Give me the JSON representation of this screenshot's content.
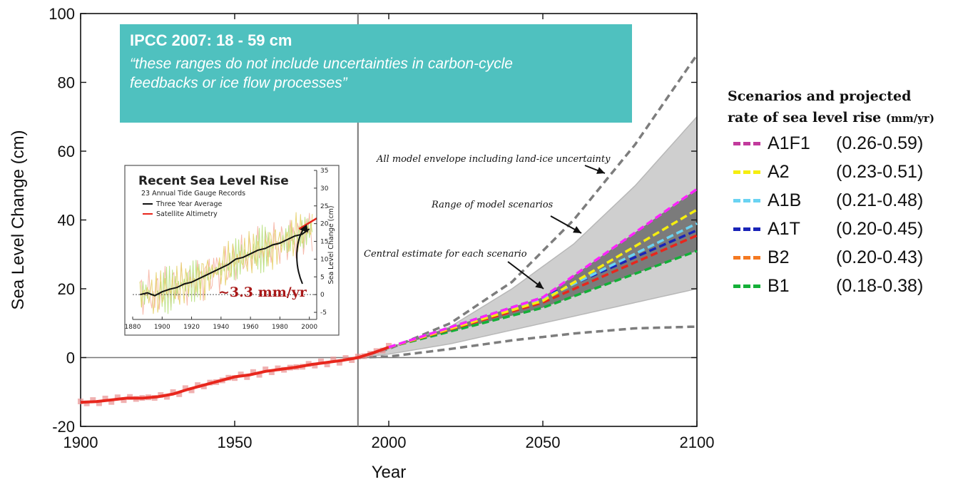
{
  "chart_data": {
    "type": "line",
    "xlabel": "Year",
    "ylabel": "Sea Level Change (cm)",
    "xlim": [
      1900,
      2100
    ],
    "ylim": [
      -20,
      100
    ],
    "x_ticks": [
      "1900",
      "1950",
      "2000",
      "2050",
      "2100"
    ],
    "y_ticks": [
      "-20",
      "0",
      "20",
      "40",
      "60",
      "80",
      "100"
    ],
    "reference_year": 1990,
    "observed": {
      "color": "#e8261c",
      "x": [
        1900,
        1905,
        1910,
        1915,
        1920,
        1925,
        1930,
        1935,
        1940,
        1945,
        1950,
        1955,
        1960,
        1965,
        1970,
        1975,
        1980,
        1985,
        1990,
        1995,
        2000
      ],
      "y": [
        -13,
        -12.8,
        -12.3,
        -11.8,
        -11.8,
        -11.4,
        -10.6,
        -9.2,
        -8,
        -6.8,
        -5.6,
        -5,
        -4,
        -3.4,
        -2.8,
        -2,
        -1.4,
        -0.8,
        0,
        1.4,
        3
      ]
    },
    "envelope_upper": {
      "label": "All model envelope including land-ice uncertainty",
      "x": [
        1990,
        2000,
        2020,
        2040,
        2060,
        2080,
        2100
      ],
      "y": [
        0,
        2.5,
        10,
        22,
        40,
        62,
        88
      ]
    },
    "envelope_lower": {
      "x": [
        1990,
        2000,
        2020,
        2040,
        2060,
        2080,
        2100
      ],
      "y": [
        0,
        0.3,
        2.5,
        5,
        7,
        8.5,
        9
      ]
    },
    "range_band": {
      "label": "Range of model scenarios",
      "x": [
        1990,
        2000,
        2020,
        2040,
        2060,
        2080,
        2100
      ],
      "upper": [
        0,
        2.5,
        9,
        20,
        33,
        50,
        70
      ],
      "lower": [
        0,
        1,
        4,
        8,
        12,
        16,
        20
      ]
    },
    "central_label": "Central estimate for each scenario",
    "series": [
      {
        "name": "A1F1",
        "range": "(0.26-0.59)",
        "color": "#c23a9c",
        "color2": "#ff22ff",
        "x": [
          2000,
          2050,
          2100
        ],
        "y": [
          3,
          17.5,
          49
        ]
      },
      {
        "name": "A2",
        "range": "(0.23-0.51)",
        "color": "#f5ee10",
        "x": [
          2000,
          2050,
          2100
        ],
        "y": [
          3,
          16.5,
          43
        ]
      },
      {
        "name": "A1B",
        "range": "(0.21-0.48)",
        "color": "#6ad3f2",
        "x": [
          2000,
          2050,
          2100
        ],
        "y": [
          3,
          17,
          39
        ]
      },
      {
        "name": "A1T",
        "range": "(0.20-0.45)",
        "color": "#1a24b8",
        "x": [
          2000,
          2050,
          2100
        ],
        "y": [
          3,
          17.5,
          37
        ]
      },
      {
        "name": "B2",
        "range": "(0.20-0.43)",
        "color": "#f57a22",
        "color2": "#e8261c",
        "x": [
          2000,
          2050,
          2100
        ],
        "y": [
          3,
          16,
          35.5
        ]
      },
      {
        "name": "B1",
        "range": "(0.18-0.38)",
        "color": "#14b038",
        "x": [
          2000,
          2050,
          2100
        ],
        "y": [
          3,
          14.5,
          31
        ]
      }
    ],
    "inset": {
      "title": "Recent Sea Level Rise",
      "subtitle": "23 Annual Tide Gauge Records",
      "legend": [
        "Three Year Average",
        "Satellite Altimetry"
      ],
      "ylabel": "Sea Level Change (cm)",
      "xlim": [
        1880,
        2005
      ],
      "ylim": [
        -7,
        35
      ],
      "x_ticks": [
        "1880",
        "1900",
        "1920",
        "1940",
        "1960",
        "1980",
        "2000"
      ],
      "y_ticks": [
        "-5",
        "0",
        "5",
        "10",
        "15",
        "20",
        "25",
        "30",
        "35"
      ],
      "rate_label": "~3.3 mm/yr",
      "three_year_average": {
        "x": [
          1885,
          1890,
          1895,
          1900,
          1905,
          1910,
          1915,
          1920,
          1925,
          1930,
          1935,
          1940,
          1945,
          1950,
          1955,
          1960,
          1965,
          1970,
          1975,
          1980,
          1985,
          1990,
          1995,
          2000
        ],
        "y": [
          0,
          0.5,
          -0.3,
          0.8,
          1.5,
          2,
          3,
          3.5,
          4.5,
          5.5,
          6.5,
          7.5,
          8.5,
          10,
          10.5,
          11.5,
          12.5,
          13,
          14,
          14.5,
          15.5,
          16.5,
          17,
          18.5
        ]
      },
      "satellite": {
        "x": [
          1993,
          2005
        ],
        "y": [
          18.5,
          21.5
        ]
      }
    }
  },
  "ipcc_box": {
    "title": "IPCC 2007: 18  - 59 cm",
    "quote_line1": "“these ranges do not include uncertainties in carbon-cycle",
    "quote_line2": "feedbacks or ice flow processes”"
  },
  "legend": {
    "title_line1": "Scenarios and projected",
    "title_line2": "rate of sea level rise",
    "title_unit": "(mm/yr)"
  }
}
